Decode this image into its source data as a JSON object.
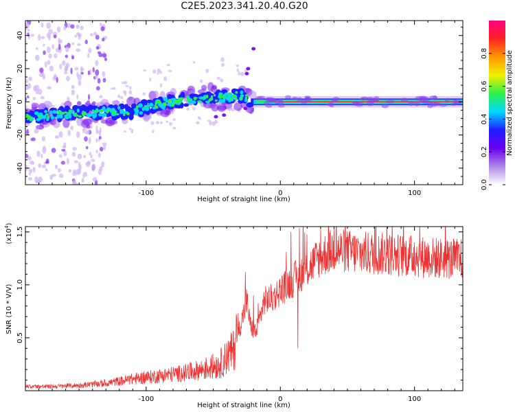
{
  "title": "C2E5.2023.341.20.40.G20",
  "chart_data": [
    {
      "type": "heatmap",
      "xlabel": "Height of straight line (km)",
      "ylabel": "Frequency (Hz)",
      "xlim": [
        -190,
        136
      ],
      "ylim": [
        -50,
        49
      ],
      "xticks": [
        -100,
        0,
        100
      ],
      "yticks": [
        -40,
        -20,
        0,
        20,
        40
      ],
      "trace": {
        "x": [
          -190,
          -170,
          -150,
          -130,
          -110,
          -90,
          -70,
          -55,
          -40,
          -30,
          -22,
          -15,
          0,
          20,
          50,
          80,
          110,
          136
        ],
        "y": [
          -9,
          -8,
          -7,
          -6,
          -6,
          -1,
          1,
          2,
          3,
          4,
          1,
          1,
          0,
          0,
          0,
          0,
          0,
          0
        ]
      },
      "colorbar": {
        "label": "Normalized spectral amplitude",
        "range": [
          0,
          1
        ],
        "ticks": [
          0.0,
          0.2,
          0.4,
          0.6,
          0.8
        ],
        "tick_labels": [
          "0.0",
          "0.2",
          "0.4",
          "0.6",
          "0.8"
        ],
        "colors": [
          "#ffffff",
          "#b088e8",
          "#6a00f0",
          "#1e1eff",
          "#00d8ff",
          "#2cf04a",
          "#f0f000",
          "#ff9800",
          "#ff2222",
          "#ff0080"
        ]
      }
    },
    {
      "type": "line",
      "xlabel": "Height of straight line (km)",
      "ylabel": "SNR (10 * V/V)",
      "multiplier": "(x10",
      "multiplier_exp": "4",
      "xlim": [
        -190,
        136
      ],
      "ylim": [
        0,
        1.55
      ],
      "xticks": [
        -100,
        0,
        100
      ],
      "yticks": [
        0.5,
        1.0,
        1.5
      ],
      "ytick_labels": [
        "0.5",
        "1.0",
        "1.5"
      ],
      "color": "#ee3333",
      "series": {
        "x": [
          -190,
          -170,
          -150,
          -130,
          -110,
          -90,
          -70,
          -55,
          -45,
          -35,
          -28,
          -25,
          -22,
          -18,
          -12,
          -5,
          0,
          10,
          20,
          30,
          40,
          60,
          80,
          100,
          120,
          136
        ],
        "y": [
          0.04,
          0.04,
          0.05,
          0.07,
          0.11,
          0.14,
          0.17,
          0.21,
          0.25,
          0.38,
          0.7,
          0.85,
          0.6,
          0.55,
          0.85,
          0.88,
          0.95,
          1.05,
          1.15,
          1.27,
          1.33,
          1.3,
          1.29,
          1.27,
          1.25,
          1.24
        ]
      },
      "peaks": {
        "x": [
          -40,
          -33,
          -26,
          -20,
          8,
          13,
          30,
          40,
          50,
          100
        ],
        "y": [
          0.45,
          0.55,
          1.12,
          0.9,
          1.5,
          0.4,
          1.55,
          1.54,
          1.45,
          1.4
        ]
      }
    }
  ]
}
